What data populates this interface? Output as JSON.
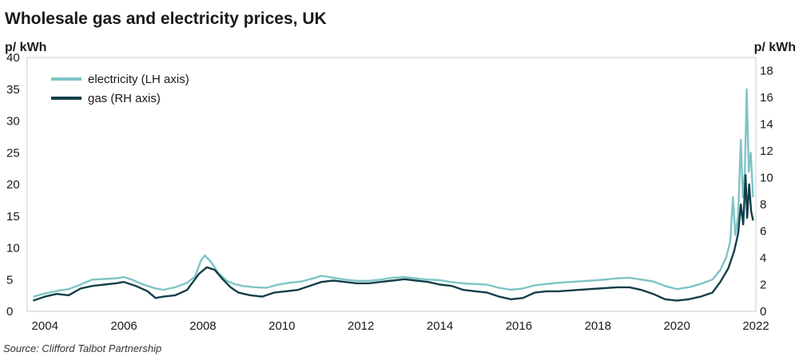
{
  "chart_data": {
    "type": "line",
    "title": "Wholesale gas and electricity prices, UK",
    "left_axis": {
      "label": "p/ kWh",
      "ylim": [
        0,
        40
      ],
      "ticks": [
        0,
        5,
        10,
        15,
        20,
        25,
        30,
        35,
        40
      ]
    },
    "right_axis": {
      "label": "p/ kWh",
      "ylim": [
        0,
        19
      ],
      "ticks": [
        0,
        2,
        4,
        6,
        8,
        10,
        12,
        14,
        16,
        18
      ]
    },
    "x_axis": {
      "xlim": [
        2003.55,
        2022.0
      ],
      "ticks": [
        "2004",
        "2006",
        "2008",
        "2010",
        "2012",
        "2014",
        "2016",
        "2018",
        "2020",
        "2022"
      ]
    },
    "legend_position": "top-left",
    "series": [
      {
        "name": "electricity (LH axis)",
        "axis": "left",
        "color": "#7ec4c6",
        "points": [
          [
            2003.7,
            2.3
          ],
          [
            2004.0,
            2.8
          ],
          [
            2004.3,
            3.2
          ],
          [
            2004.6,
            3.5
          ],
          [
            2004.9,
            4.2
          ],
          [
            2005.0,
            4.5
          ],
          [
            2005.2,
            5.0
          ],
          [
            2005.5,
            5.1
          ],
          [
            2005.8,
            5.2
          ],
          [
            2006.0,
            5.4
          ],
          [
            2006.2,
            5.0
          ],
          [
            2006.5,
            4.2
          ],
          [
            2006.8,
            3.6
          ],
          [
            2007.0,
            3.4
          ],
          [
            2007.3,
            3.8
          ],
          [
            2007.6,
            4.5
          ],
          [
            2007.8,
            5.5
          ],
          [
            2007.95,
            8.0
          ],
          [
            2008.05,
            8.8
          ],
          [
            2008.2,
            7.8
          ],
          [
            2008.4,
            6.0
          ],
          [
            2008.6,
            4.8
          ],
          [
            2008.8,
            4.3
          ],
          [
            2009.0,
            4.0
          ],
          [
            2009.3,
            3.8
          ],
          [
            2009.6,
            3.7
          ],
          [
            2009.9,
            4.2
          ],
          [
            2010.2,
            4.5
          ],
          [
            2010.5,
            4.7
          ],
          [
            2010.8,
            5.2
          ],
          [
            2011.0,
            5.6
          ],
          [
            2011.3,
            5.3
          ],
          [
            2011.6,
            5.0
          ],
          [
            2011.9,
            4.8
          ],
          [
            2012.2,
            4.8
          ],
          [
            2012.5,
            5.0
          ],
          [
            2012.8,
            5.3
          ],
          [
            2013.1,
            5.4
          ],
          [
            2013.4,
            5.2
          ],
          [
            2013.7,
            5.0
          ],
          [
            2014.0,
            4.9
          ],
          [
            2014.3,
            4.6
          ],
          [
            2014.6,
            4.4
          ],
          [
            2014.9,
            4.3
          ],
          [
            2015.2,
            4.2
          ],
          [
            2015.5,
            3.7
          ],
          [
            2015.8,
            3.4
          ],
          [
            2016.1,
            3.6
          ],
          [
            2016.4,
            4.1
          ],
          [
            2016.7,
            4.3
          ],
          [
            2017.0,
            4.5
          ],
          [
            2017.5,
            4.7
          ],
          [
            2018.0,
            4.9
          ],
          [
            2018.5,
            5.2
          ],
          [
            2018.8,
            5.3
          ],
          [
            2019.1,
            5.0
          ],
          [
            2019.4,
            4.7
          ],
          [
            2019.7,
            4.0
          ],
          [
            2020.0,
            3.5
          ],
          [
            2020.3,
            3.8
          ],
          [
            2020.6,
            4.3
          ],
          [
            2020.9,
            5.0
          ],
          [
            2021.1,
            6.5
          ],
          [
            2021.25,
            8.5
          ],
          [
            2021.35,
            11.0
          ],
          [
            2021.42,
            18.0
          ],
          [
            2021.48,
            12.0
          ],
          [
            2021.55,
            15.0
          ],
          [
            2021.62,
            27.0
          ],
          [
            2021.67,
            18.0
          ],
          [
            2021.72,
            22.0
          ],
          [
            2021.77,
            35.0
          ],
          [
            2021.82,
            22.0
          ],
          [
            2021.87,
            25.0
          ],
          [
            2021.93,
            18.0
          ]
        ]
      },
      {
        "name": "gas (RH axis)",
        "axis": "right",
        "color": "#123f4a",
        "points": [
          [
            2003.7,
            0.8
          ],
          [
            2004.0,
            1.1
          ],
          [
            2004.3,
            1.3
          ],
          [
            2004.6,
            1.2
          ],
          [
            2004.9,
            1.7
          ],
          [
            2005.2,
            1.9
          ],
          [
            2005.5,
            2.0
          ],
          [
            2005.8,
            2.1
          ],
          [
            2006.0,
            2.2
          ],
          [
            2006.3,
            1.9
          ],
          [
            2006.6,
            1.5
          ],
          [
            2006.8,
            1.0
          ],
          [
            2007.0,
            1.1
          ],
          [
            2007.3,
            1.2
          ],
          [
            2007.6,
            1.6
          ],
          [
            2007.9,
            2.8
          ],
          [
            2008.1,
            3.3
          ],
          [
            2008.3,
            3.1
          ],
          [
            2008.5,
            2.4
          ],
          [
            2008.7,
            1.8
          ],
          [
            2008.9,
            1.4
          ],
          [
            2009.2,
            1.2
          ],
          [
            2009.5,
            1.1
          ],
          [
            2009.8,
            1.4
          ],
          [
            2010.1,
            1.5
          ],
          [
            2010.4,
            1.6
          ],
          [
            2010.7,
            1.9
          ],
          [
            2011.0,
            2.2
          ],
          [
            2011.3,
            2.3
          ],
          [
            2011.6,
            2.2
          ],
          [
            2011.9,
            2.1
          ],
          [
            2012.2,
            2.1
          ],
          [
            2012.5,
            2.2
          ],
          [
            2012.8,
            2.3
          ],
          [
            2013.1,
            2.4
          ],
          [
            2013.4,
            2.3
          ],
          [
            2013.7,
            2.2
          ],
          [
            2014.0,
            2.0
          ],
          [
            2014.3,
            1.9
          ],
          [
            2014.6,
            1.6
          ],
          [
            2014.9,
            1.5
          ],
          [
            2015.2,
            1.4
          ],
          [
            2015.5,
            1.1
          ],
          [
            2015.8,
            0.9
          ],
          [
            2016.1,
            1.0
          ],
          [
            2016.4,
            1.4
          ],
          [
            2016.7,
            1.5
          ],
          [
            2017.0,
            1.5
          ],
          [
            2017.5,
            1.6
          ],
          [
            2018.0,
            1.7
          ],
          [
            2018.5,
            1.8
          ],
          [
            2018.8,
            1.8
          ],
          [
            2019.1,
            1.6
          ],
          [
            2019.4,
            1.3
          ],
          [
            2019.7,
            0.9
          ],
          [
            2020.0,
            0.8
          ],
          [
            2020.3,
            0.9
          ],
          [
            2020.6,
            1.1
          ],
          [
            2020.9,
            1.4
          ],
          [
            2021.1,
            2.2
          ],
          [
            2021.3,
            3.2
          ],
          [
            2021.45,
            4.5
          ],
          [
            2021.55,
            5.8
          ],
          [
            2021.62,
            8.0
          ],
          [
            2021.68,
            6.5
          ],
          [
            2021.74,
            10.2
          ],
          [
            2021.78,
            7.0
          ],
          [
            2021.83,
            9.5
          ],
          [
            2021.88,
            7.5
          ],
          [
            2021.93,
            6.8
          ]
        ]
      }
    ],
    "source": "Source: Clifford Talbot Partnership"
  }
}
